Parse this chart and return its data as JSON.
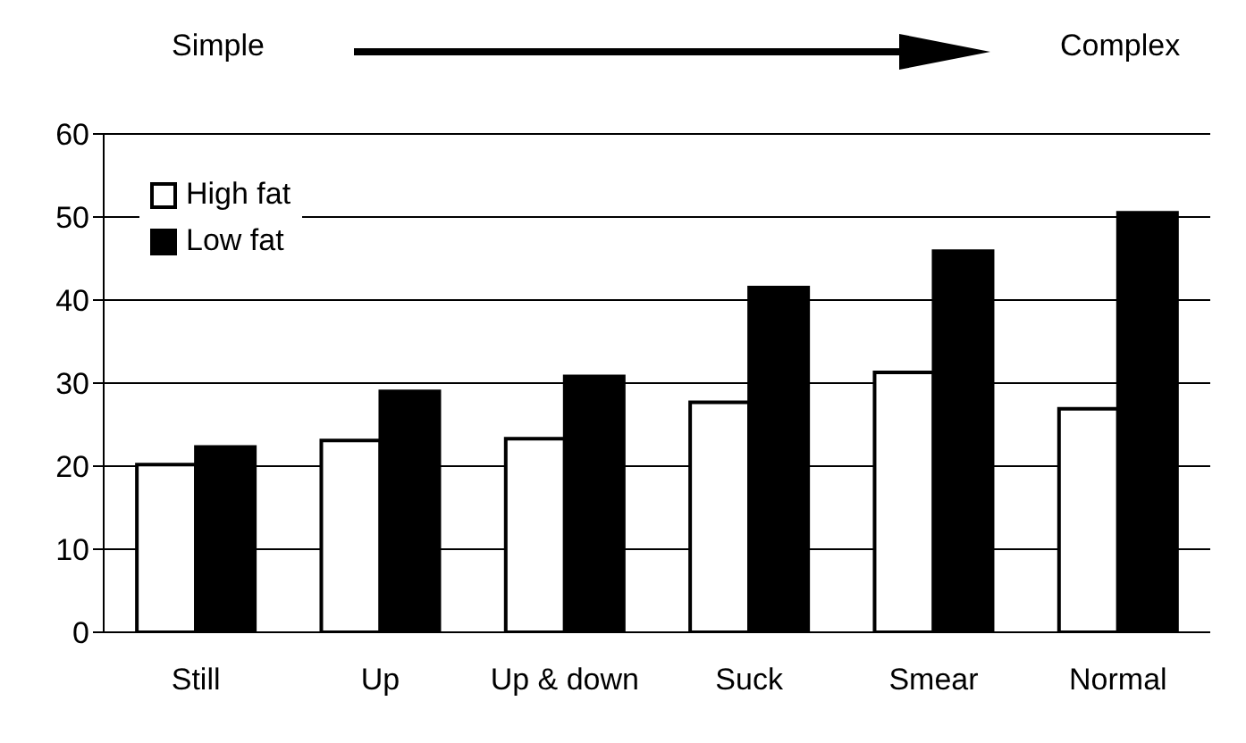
{
  "chart_data": {
    "type": "bar",
    "categories": [
      "Still",
      "Up",
      "Up & down",
      "Suck",
      "Smear",
      "Normal"
    ],
    "series": [
      {
        "name": "High fat",
        "color": "#ffffff",
        "values": [
          20.2,
          23.1,
          23.3,
          27.7,
          31.3,
          26.9
        ]
      },
      {
        "name": "Low fat",
        "color": "#000000",
        "values": [
          22.3,
          29.0,
          30.8,
          41.5,
          45.9,
          50.5
        ]
      }
    ],
    "ylim": [
      0,
      60
    ],
    "yticks": [
      0,
      10,
      20,
      30,
      40,
      50,
      60
    ],
    "grid": "y",
    "legend": "top left",
    "annotations": [
      "Simple",
      "Complex"
    ]
  }
}
